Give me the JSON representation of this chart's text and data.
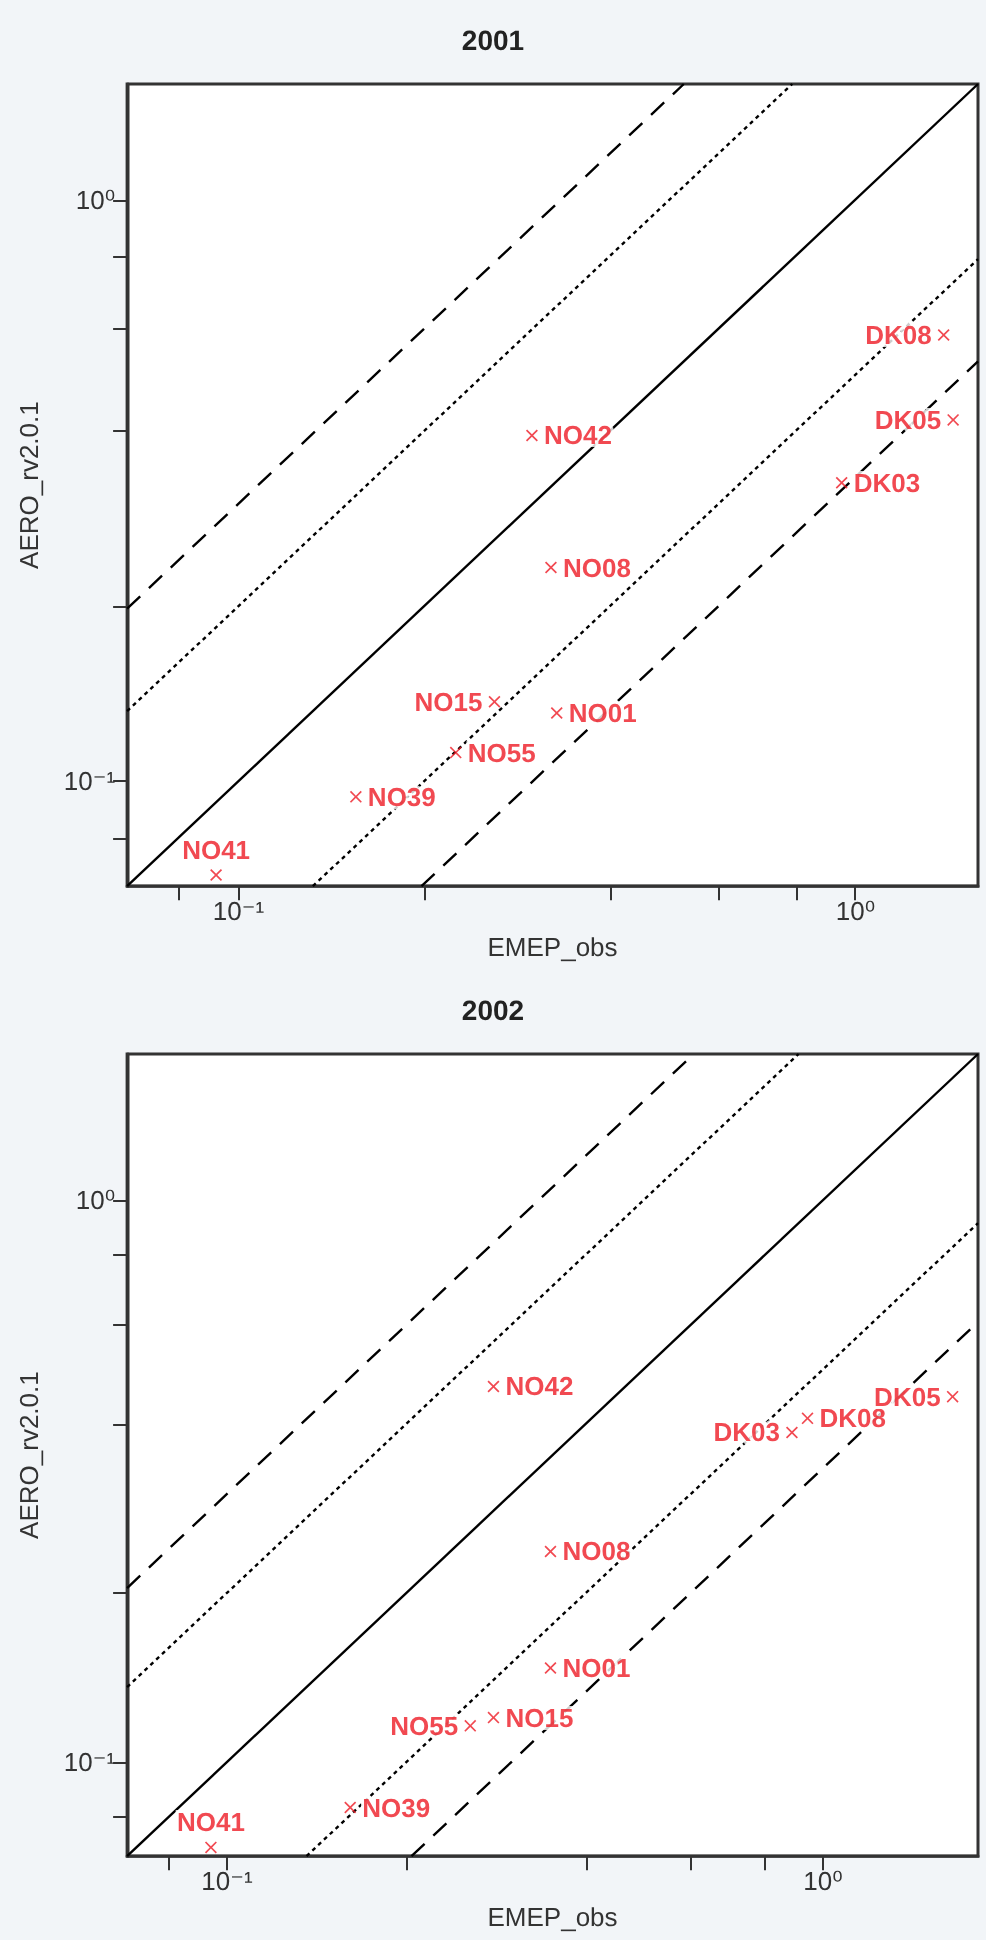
{
  "chart_data": [
    {
      "type": "scatter",
      "title": "2001",
      "xlabel": "EMEP_obs",
      "ylabel": "AERO_rv2.0.1",
      "log": "xy",
      "grid": false,
      "legend": false,
      "marker": "cross",
      "xlim": [
        0.066,
        1.58
      ],
      "ylim": [
        0.066,
        1.58
      ],
      "xticks": [
        {
          "value": 0.08,
          "label": null
        },
        {
          "value": 0.1,
          "label": "10⁻¹"
        },
        {
          "value": 0.2,
          "label": null
        },
        {
          "value": 0.4,
          "label": null
        },
        {
          "value": 0.6,
          "label": null
        },
        {
          "value": 0.8,
          "label": null
        },
        {
          "value": 1,
          "label": "10⁰"
        }
      ],
      "yticks": [
        {
          "value": 0.08,
          "label": null
        },
        {
          "value": 0.1,
          "label": "10⁻¹"
        },
        {
          "value": 0.2,
          "label": null
        },
        {
          "value": 0.4,
          "label": null
        },
        {
          "value": 0.6,
          "label": null
        },
        {
          "value": 0.8,
          "label": null
        },
        {
          "value": 1,
          "label": "10⁰"
        }
      ],
      "series": [
        {
          "type": "line",
          "marker": "none",
          "line_style": "dashed",
          "color": "#000000",
          "x": [
            0.066,
            0.527
          ],
          "values": [
            0.198,
            1.58
          ]
        },
        {
          "type": "line",
          "marker": "none",
          "line_style": "dotted",
          "color": "#000000",
          "x": [
            0.066,
            0.79
          ],
          "values": [
            0.132,
            1.58
          ]
        },
        {
          "type": "line",
          "marker": "none",
          "line_style": "solid",
          "color": "#000000",
          "x": [
            0.066,
            1.58
          ],
          "values": [
            0.066,
            1.58
          ]
        },
        {
          "type": "line",
          "marker": "none",
          "line_style": "dotted",
          "color": "#000000",
          "x": [
            0.132,
            1.58
          ],
          "values": [
            0.066,
            0.79
          ]
        },
        {
          "type": "line",
          "marker": "none",
          "line_style": "dashed",
          "color": "#000000",
          "x": [
            0.198,
            1.58
          ],
          "values": [
            0.066,
            0.527
          ]
        },
        {
          "name": "NO41",
          "color": "#ee1c25",
          "x": [
            0.092
          ],
          "values": [
            0.069
          ]
        },
        {
          "name": "NO39",
          "color": "#ee1c25",
          "x": [
            0.155
          ],
          "values": [
            0.094
          ]
        },
        {
          "name": "NO55",
          "color": "#ee1c25",
          "x": [
            0.225
          ],
          "values": [
            0.112
          ]
        },
        {
          "name": "NO15",
          "color": "#ee1c25",
          "x": [
            0.26
          ],
          "values": [
            0.137
          ]
        },
        {
          "name": "NO01",
          "color": "#ee1c25",
          "x": [
            0.328
          ],
          "values": [
            0.131
          ]
        },
        {
          "name": "NO08",
          "color": "#ee1c25",
          "x": [
            0.321
          ],
          "values": [
            0.233
          ]
        },
        {
          "name": "NO42",
          "color": "#ee1c25",
          "x": [
            0.299
          ],
          "values": [
            0.393
          ]
        },
        {
          "name": "DK03",
          "color": "#ee1c25",
          "x": [
            0.95
          ],
          "values": [
            0.326
          ]
        },
        {
          "name": "DK05",
          "color": "#ee1c25",
          "x": [
            1.44
          ],
          "values": [
            0.418
          ]
        },
        {
          "name": "DK08",
          "color": "#ee1c25",
          "x": [
            1.39
          ],
          "values": [
            0.585
          ]
        }
      ]
    },
    {
      "type": "scatter",
      "title": "2002",
      "xlabel": "EMEP_obs",
      "ylabel": "AERO_rv2.0.1",
      "log": "xy",
      "grid": false,
      "legend": false,
      "marker": "cross",
      "xlim": [
        0.068,
        1.82
      ],
      "ylim": [
        0.068,
        1.82
      ],
      "xticks": [
        {
          "value": 0.08,
          "label": null
        },
        {
          "value": 0.1,
          "label": "10⁻¹"
        },
        {
          "value": 0.2,
          "label": null
        },
        {
          "value": 0.4,
          "label": null
        },
        {
          "value": 0.6,
          "label": null
        },
        {
          "value": 0.8,
          "label": null
        },
        {
          "value": 1,
          "label": "10⁰"
        }
      ],
      "yticks": [
        {
          "value": 0.08,
          "label": null
        },
        {
          "value": 0.1,
          "label": "10⁻¹"
        },
        {
          "value": 0.2,
          "label": null
        },
        {
          "value": 0.4,
          "label": null
        },
        {
          "value": 0.6,
          "label": null
        },
        {
          "value": 0.8,
          "label": null
        },
        {
          "value": 1,
          "label": "10⁰"
        }
      ],
      "series": [
        {
          "type": "line",
          "marker": "none",
          "line_style": "dashed",
          "color": "#000000",
          "x": [
            0.068,
            0.607
          ],
          "values": [
            0.204,
            1.82
          ]
        },
        {
          "type": "line",
          "marker": "none",
          "line_style": "dotted",
          "color": "#000000",
          "x": [
            0.068,
            0.91
          ],
          "values": [
            0.136,
            1.82
          ]
        },
        {
          "type": "line",
          "marker": "none",
          "line_style": "solid",
          "color": "#000000",
          "x": [
            0.068,
            1.82
          ],
          "values": [
            0.068,
            1.82
          ]
        },
        {
          "type": "line",
          "marker": "none",
          "line_style": "dotted",
          "color": "#000000",
          "x": [
            0.136,
            1.82
          ],
          "values": [
            0.068,
            0.91
          ]
        },
        {
          "type": "line",
          "marker": "none",
          "line_style": "dashed",
          "color": "#000000",
          "x": [
            0.204,
            1.82
          ],
          "values": [
            0.068,
            0.607
          ]
        },
        {
          "name": "NO41",
          "color": "#ee1c25",
          "x": [
            0.094
          ],
          "values": [
            0.0705
          ]
        },
        {
          "name": "NO39",
          "color": "#ee1c25",
          "x": [
            0.161
          ],
          "values": [
            0.083
          ]
        },
        {
          "name": "NO55",
          "color": "#ee1c25",
          "x": [
            0.256
          ],
          "values": [
            0.116
          ]
        },
        {
          "name": "NO15",
          "color": "#ee1c25",
          "x": [
            0.28
          ],
          "values": [
            0.12
          ]
        },
        {
          "name": "NO01",
          "color": "#ee1c25",
          "x": [
            0.349
          ],
          "values": [
            0.147
          ]
        },
        {
          "name": "NO08",
          "color": "#ee1c25",
          "x": [
            0.349
          ],
          "values": [
            0.237
          ]
        },
        {
          "name": "NO42",
          "color": "#ee1c25",
          "x": [
            0.28
          ],
          "values": [
            0.466
          ]
        },
        {
          "name": "DK03",
          "color": "#ee1c25",
          "x": [
            0.887
          ],
          "values": [
            0.386
          ]
        },
        {
          "name": "DK08",
          "color": "#ee1c25",
          "x": [
            0.942
          ],
          "values": [
            0.409
          ]
        },
        {
          "name": "DK05",
          "color": "#ee1c25",
          "x": [
            1.65
          ],
          "values": [
            0.447
          ]
        }
      ]
    }
  ]
}
